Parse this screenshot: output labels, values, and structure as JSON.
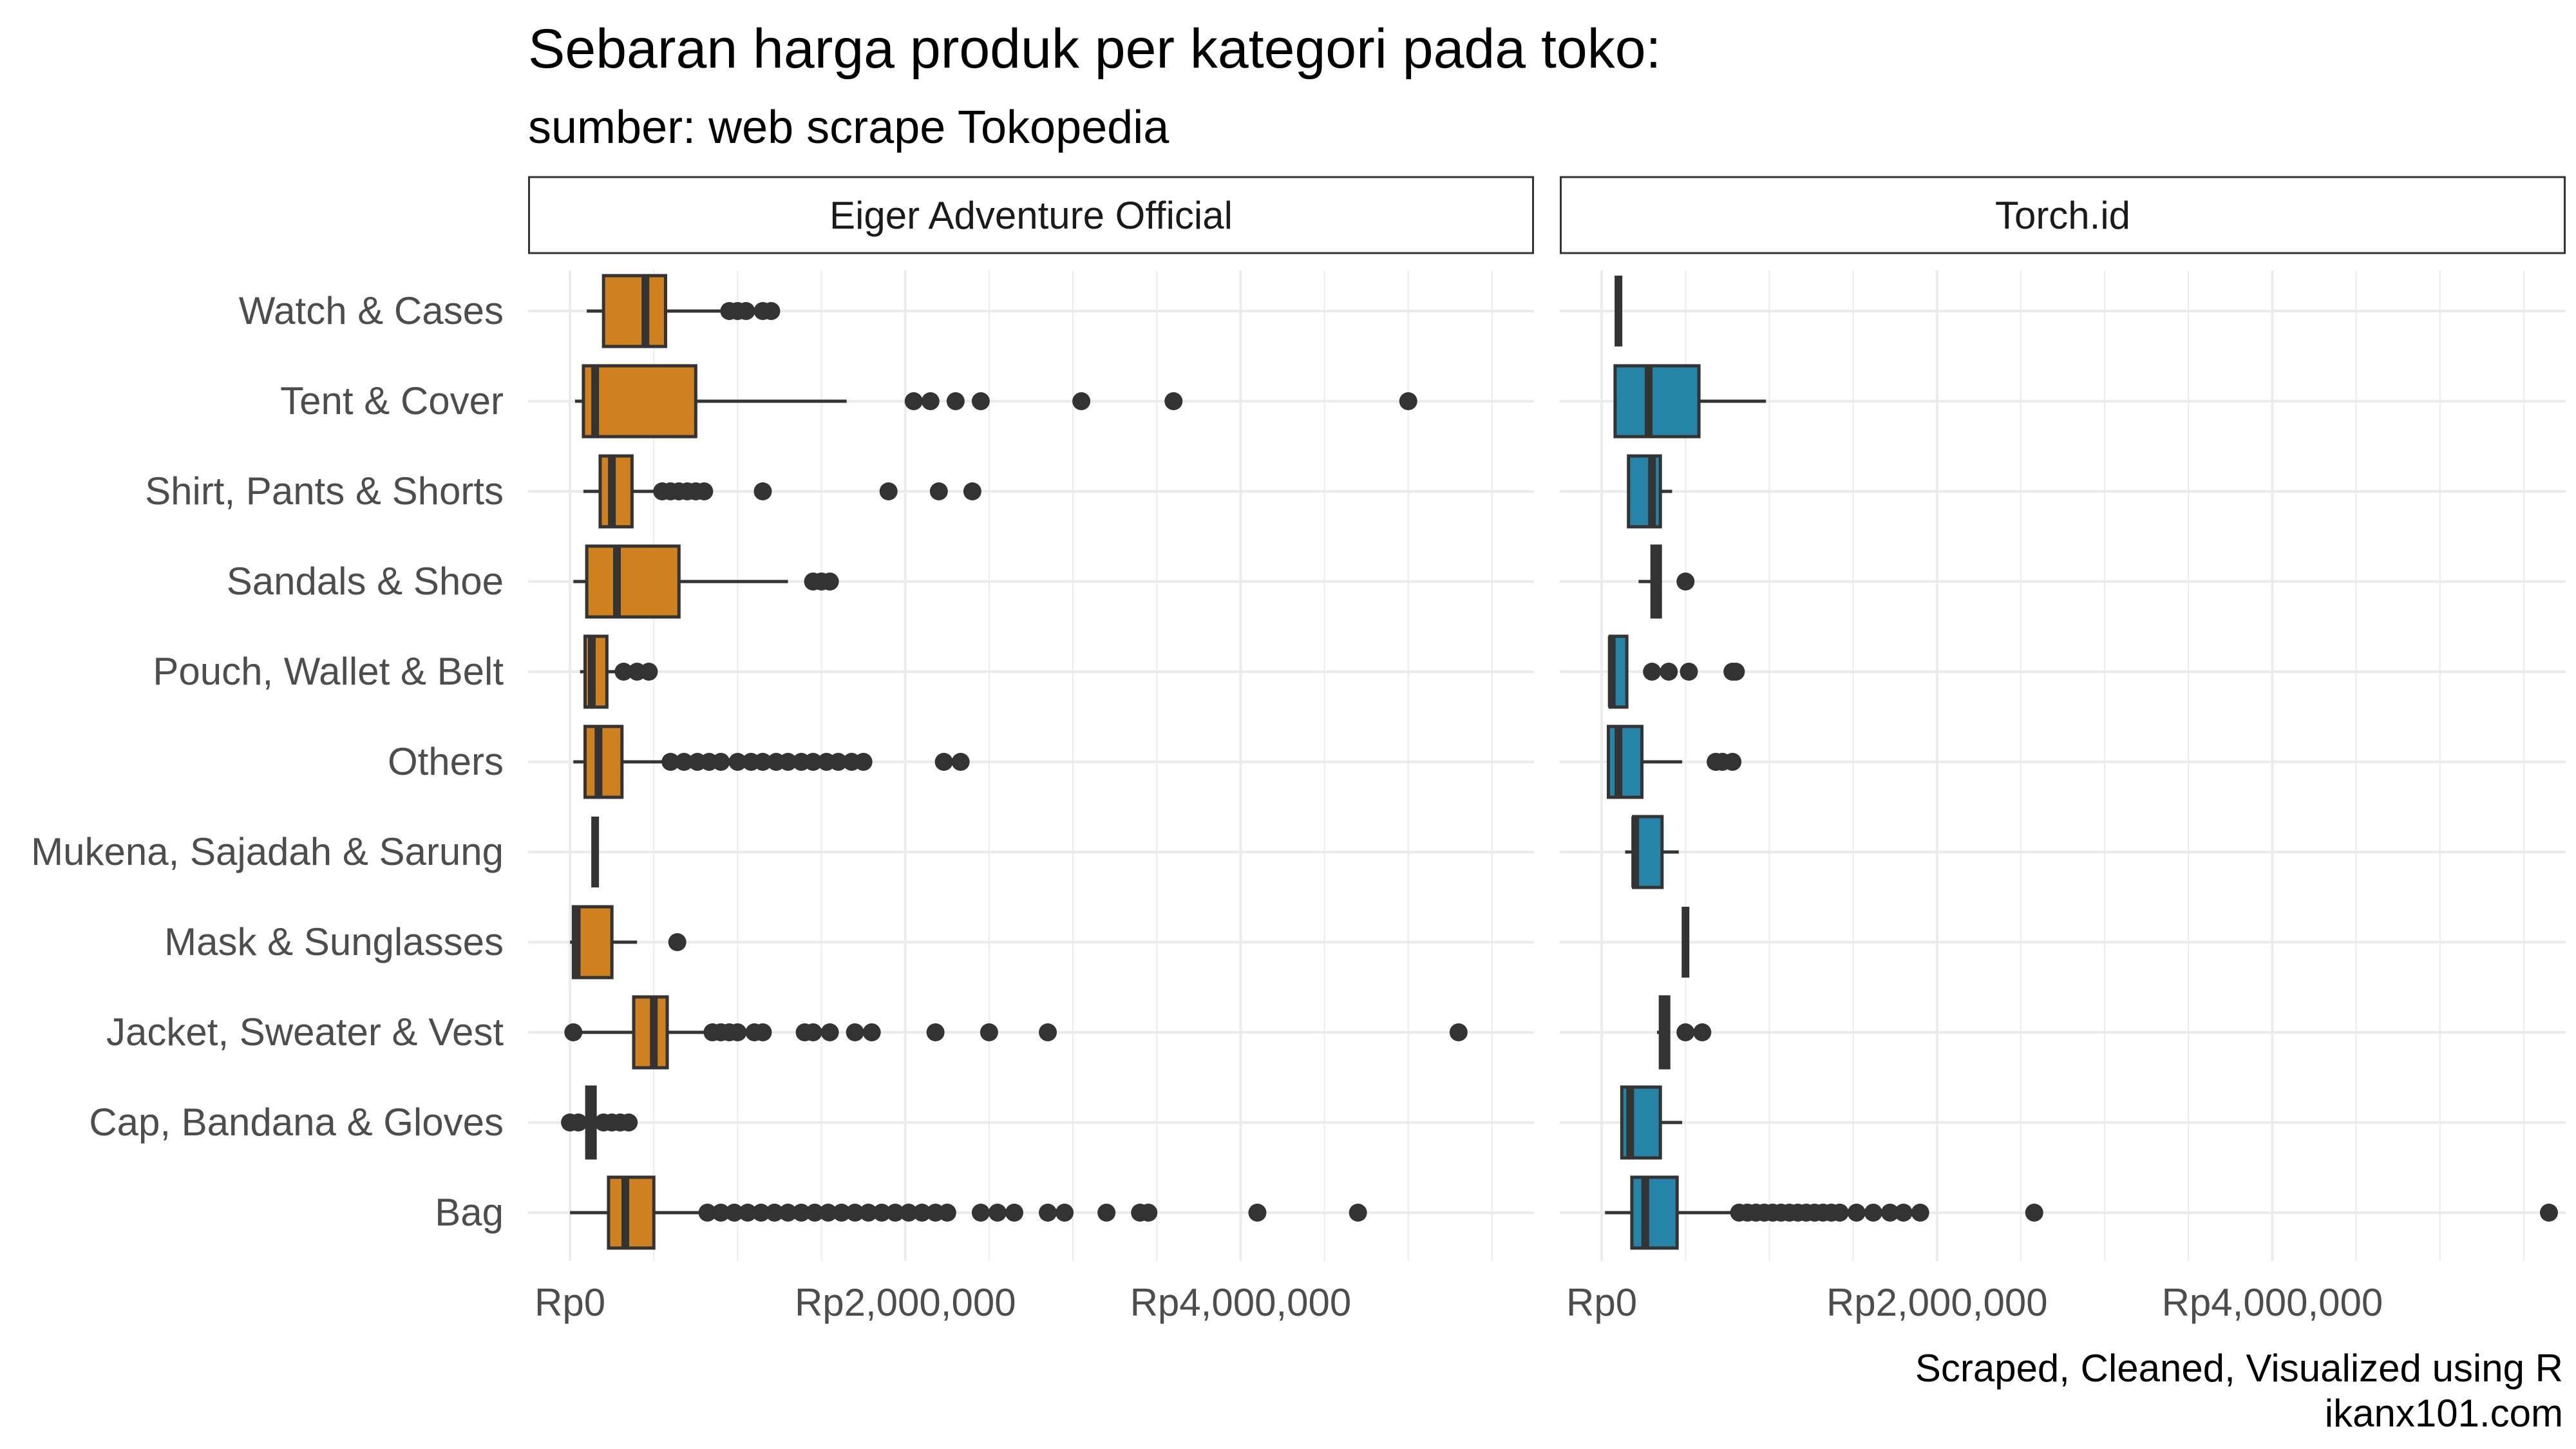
{
  "chart_data": {
    "type": "boxplot",
    "title": "Sebaran harga produk per kategori pada toko:",
    "subtitle": "sumber: web scrape Tokopedia",
    "caption": [
      "Scraped, Cleaned, Visualized using R",
      "ikanx101.com"
    ],
    "categories": [
      "Watch & Cases",
      "Tent & Cover",
      "Shirt, Pants & Shorts",
      "Sandals & Shoe",
      "Pouch, Wallet & Belt",
      "Others",
      "Mukena, Sajadah & Sarung",
      "Mask & Sunglasses",
      "Jacket, Sweater & Vest",
      "Cap, Bandana & Gloves",
      "Bag"
    ],
    "x_ticks": [
      0,
      2000000,
      4000000
    ],
    "x_tick_labels": [
      "Rp0",
      "Rp2,000,000",
      "Rp4,000,000"
    ],
    "xlim": [
      -250000,
      5750000
    ],
    "grid": true,
    "facets": [
      {
        "name": "Eiger Adventure Official",
        "color": "#D0811F",
        "boxes": {
          "Watch & Cases": {
            "min": 100000,
            "q1": 200000,
            "median": 450000,
            "q3": 570000,
            "max": 900000,
            "outliers": [
              950000,
              1000000,
              1050000,
              1150000,
              1200000
            ]
          },
          "Tent & Cover": {
            "min": 30000,
            "q1": 80000,
            "median": 150000,
            "q3": 750000,
            "max": 1650000,
            "outliers": [
              2050000,
              2150000,
              2300000,
              2450000,
              3050000,
              3600000,
              5000000
            ]
          },
          "Shirt, Pants & Shorts": {
            "min": 80000,
            "q1": 180000,
            "median": 250000,
            "q3": 370000,
            "max": 500000,
            "outliers": [
              550000,
              600000,
              650000,
              700000,
              750000,
              800000,
              1150000,
              1900000,
              2200000,
              2400000
            ]
          },
          "Sandals & Shoe": {
            "min": 20000,
            "q1": 100000,
            "median": 280000,
            "q3": 650000,
            "max": 1300000,
            "outliers": [
              1450000,
              1500000,
              1550000
            ]
          },
          "Pouch, Wallet & Belt": {
            "min": 60000,
            "q1": 90000,
            "median": 130000,
            "q3": 220000,
            "max": 270000,
            "outliers": [
              320000,
              400000,
              470000
            ]
          },
          "Others": {
            "min": 20000,
            "q1": 90000,
            "median": 170000,
            "q3": 310000,
            "max": 550000,
            "outliers": [
              600000,
              680000,
              760000,
              830000,
              900000,
              1000000,
              1080000,
              1150000,
              1230000,
              1300000,
              1380000,
              1450000,
              1530000,
              1600000,
              1680000,
              1750000,
              2230000,
              2330000
            ]
          },
          "Mukena, Sajadah & Sarung": {
            "min": 150000,
            "q1": 150000,
            "median": 150000,
            "q3": 150000,
            "max": 150000,
            "outliers": []
          },
          "Mask & Sunglasses": {
            "min": 0,
            "q1": 20000,
            "median": 40000,
            "q3": 250000,
            "max": 400000,
            "outliers": [
              640000
            ]
          },
          "Jacket, Sweater & Vest": {
            "min": 0,
            "q1": 380000,
            "median": 500000,
            "q3": 580000,
            "max": 800000,
            "outliers": [
              20000,
              850000,
              900000,
              950000,
              1000000,
              1100000,
              1150000,
              1400000,
              1450000,
              1550000,
              1700000,
              1800000,
              2180000,
              2500000,
              2850000,
              5300000
            ]
          },
          "Cap, Bandana & Gloves": {
            "min": 0,
            "q1": 100000,
            "median": 130000,
            "q3": 150000,
            "max": 200000,
            "outliers": [
              0,
              50000,
              200000,
              250000,
              300000,
              350000
            ]
          },
          "Bag": {
            "min": 0,
            "q1": 230000,
            "median": 330000,
            "q3": 500000,
            "max": 780000,
            "outliers": [
              820000,
              900000,
              980000,
              1060000,
              1140000,
              1220000,
              1300000,
              1380000,
              1460000,
              1540000,
              1620000,
              1700000,
              1780000,
              1860000,
              1940000,
              2020000,
              2100000,
              2180000,
              2250000,
              2450000,
              2550000,
              2650000,
              2850000,
              2950000,
              3200000,
              3400000,
              3450000,
              4100000,
              4700000
            ]
          }
        }
      },
      {
        "name": "Torch.id",
        "color": "#2584A8",
        "boxes": {
          "Watch & Cases": {
            "min": 100000,
            "q1": 100000,
            "median": 100000,
            "q3": 100000,
            "max": 100000,
            "outliers": []
          },
          "Tent & Cover": {
            "min": 80000,
            "q1": 80000,
            "median": 280000,
            "q3": 580000,
            "max": 980000,
            "outliers": []
          },
          "Shirt, Pants & Shorts": {
            "min": 160000,
            "q1": 160000,
            "median": 300000,
            "q3": 350000,
            "max": 420000,
            "outliers": []
          },
          "Sandals & Shoe": {
            "min": 220000,
            "q1": 300000,
            "median": 320000,
            "q3": 350000,
            "max": 350000,
            "outliers": [
              500000
            ]
          },
          "Pouch, Wallet & Belt": {
            "min": 50000,
            "q1": 50000,
            "median": 60000,
            "q3": 150000,
            "max": 150000,
            "outliers": [
              300000,
              400000,
              520000,
              780000,
              800000
            ]
          },
          "Others": {
            "min": 40000,
            "q1": 40000,
            "median": 100000,
            "q3": 240000,
            "max": 480000,
            "outliers": [
              680000,
              720000,
              780000
            ]
          },
          "Mukena, Sajadah & Sarung": {
            "min": 140000,
            "q1": 190000,
            "median": 200000,
            "q3": 360000,
            "max": 460000,
            "outliers": []
          },
          "Mask & Sunglasses": {
            "min": 500000,
            "q1": 500000,
            "median": 500000,
            "q3": 500000,
            "max": 500000,
            "outliers": []
          },
          "Jacket, Sweater & Vest": {
            "min": 330000,
            "q1": 350000,
            "median": 370000,
            "q3": 400000,
            "max": 400000,
            "outliers": [
              500000,
              600000
            ]
          },
          "Cap, Bandana & Gloves": {
            "min": 120000,
            "q1": 120000,
            "median": 170000,
            "q3": 350000,
            "max": 480000,
            "outliers": []
          },
          "Bag": {
            "min": 20000,
            "q1": 180000,
            "median": 260000,
            "q3": 450000,
            "max": 800000,
            "outliers": [
              820000,
              870000,
              920000,
              970000,
              1020000,
              1070000,
              1120000,
              1170000,
              1220000,
              1270000,
              1320000,
              1370000,
              1420000,
              1520000,
              1620000,
              1720000,
              1800000,
              1900000,
              2580000,
              5650000
            ]
          }
        }
      }
    ]
  }
}
